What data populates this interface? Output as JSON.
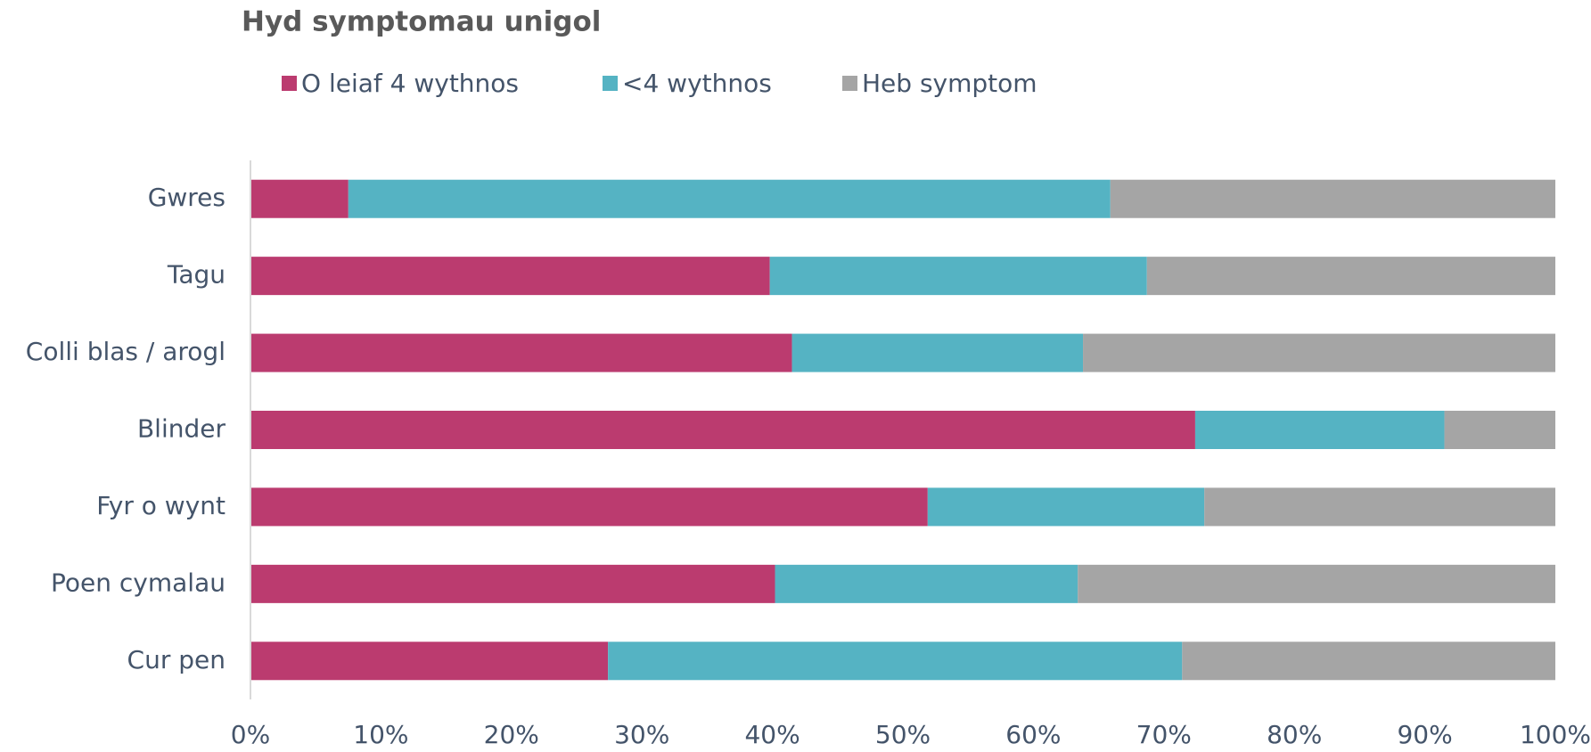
{
  "chart_data": {
    "type": "stacked_barh",
    "title": "Hyd symptomau unigol",
    "categories": [
      "Gwres",
      "Tagu",
      "Colli blas / arogl",
      "Blinder",
      "Fyr o wynt",
      "Poen cymalau",
      "Cur pen"
    ],
    "series": [
      {
        "name": "O leiaf 4 wythnos",
        "color": "#bb3b6f",
        "values": [
          7.5,
          39.8,
          41.5,
          72.4,
          51.9,
          40.2,
          27.4
        ]
      },
      {
        "name": "<4 wythnos",
        "color": "#55b3c3",
        "values": [
          58.4,
          28.9,
          22.3,
          19.1,
          21.2,
          23.2,
          44.0
        ]
      },
      {
        "name": "Heb symptom",
        "color": "#a5a5a5",
        "values": [
          34.1,
          31.3,
          36.2,
          8.5,
          26.9,
          36.6,
          28.6
        ]
      }
    ],
    "xlim": [
      0,
      100
    ],
    "xticks": [
      {
        "value": 0,
        "label": "0%"
      },
      {
        "value": 10,
        "label": "10%"
      },
      {
        "value": 20,
        "label": "20%"
      },
      {
        "value": 30,
        "label": "30%"
      },
      {
        "value": 40,
        "label": "40%"
      },
      {
        "value": 50,
        "label": "50%"
      },
      {
        "value": 60,
        "label": "60%"
      },
      {
        "value": 70,
        "label": "70%"
      },
      {
        "value": 80,
        "label": "80%"
      },
      {
        "value": 90,
        "label": "90%"
      },
      {
        "value": 100,
        "label": "100%"
      }
    ],
    "legend": "top"
  }
}
